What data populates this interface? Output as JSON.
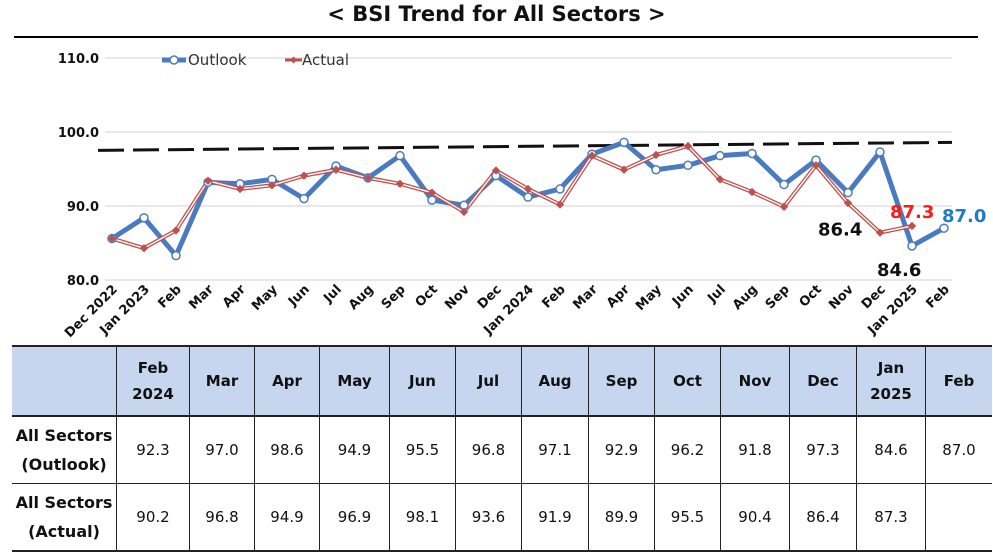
{
  "title": "< BSI Trend for All Sectors >",
  "chart_data": {
    "type": "line",
    "ylim": [
      80,
      110
    ],
    "yticks": [
      "80.0",
      "90.0",
      "100.0",
      "110.0"
    ],
    "legend_position": "top-left",
    "reference_line": 98.6,
    "categories": [
      "Dec 2022",
      "Jan 2023",
      "Feb",
      "Mar",
      "Apr",
      "May",
      "Jun",
      "Jul",
      "Aug",
      "Sep",
      "Oct",
      "Nov",
      "Dec",
      "Jan 2024",
      "Feb",
      "Mar",
      "Apr",
      "May",
      "Jun",
      "Jul",
      "Aug",
      "Sep",
      "Oct",
      "Nov",
      "Dec",
      "Jan 2025",
      "Feb"
    ],
    "series": [
      {
        "name": "Outlook",
        "color": "#4a7bc1",
        "values": [
          85.6,
          88.4,
          83.3,
          93.2,
          93.0,
          93.6,
          91.0,
          95.4,
          93.8,
          96.8,
          90.8,
          90.1,
          94.1,
          91.2,
          92.3,
          97.0,
          98.6,
          94.9,
          95.5,
          96.8,
          97.1,
          92.9,
          96.2,
          91.8,
          97.3,
          84.6,
          87.0
        ]
      },
      {
        "name": "Actual",
        "color": "#c0504d",
        "values": [
          85.6,
          84.3,
          86.7,
          93.4,
          92.3,
          92.8,
          94.1,
          94.9,
          93.8,
          93.0,
          91.8,
          89.2,
          94.8,
          92.3,
          90.2,
          96.8,
          94.9,
          96.9,
          98.1,
          93.6,
          91.9,
          89.9,
          95.5,
          90.4,
          86.4,
          87.3,
          null
        ]
      }
    ],
    "annotations": [
      {
        "text": "87.3",
        "color": "#ff1a1a"
      },
      {
        "text": "87.0",
        "color": "#1f7cc4"
      },
      {
        "text": "86.4",
        "color": "#111111"
      },
      {
        "text": "84.6",
        "color": "#111111"
      }
    ]
  },
  "table": {
    "columns": [
      [
        "",
        ""
      ],
      [
        "Feb",
        "2024"
      ],
      [
        "Mar",
        ""
      ],
      [
        "Apr",
        ""
      ],
      [
        "May",
        ""
      ],
      [
        "Jun",
        ""
      ],
      [
        "Jul",
        ""
      ],
      [
        "Aug",
        ""
      ],
      [
        "Sep",
        ""
      ],
      [
        "Oct",
        ""
      ],
      [
        "Nov",
        ""
      ],
      [
        "Dec",
        ""
      ],
      [
        "Jan",
        "2025"
      ],
      [
        "Feb",
        ""
      ]
    ],
    "rows": [
      {
        "label": [
          "All Sectors",
          "(Outlook)"
        ],
        "values": [
          "92.3",
          "97.0",
          "98.6",
          "94.9",
          "95.5",
          "96.8",
          "97.1",
          "92.9",
          "96.2",
          "91.8",
          "97.3",
          "84.6",
          "87.0"
        ]
      },
      {
        "label": [
          "All Sectors",
          "(Actual)"
        ],
        "values": [
          "90.2",
          "96.8",
          "94.9",
          "96.9",
          "98.1",
          "93.6",
          "91.9",
          "89.9",
          "95.5",
          "90.4",
          "86.4",
          "87.3",
          ""
        ]
      }
    ]
  }
}
